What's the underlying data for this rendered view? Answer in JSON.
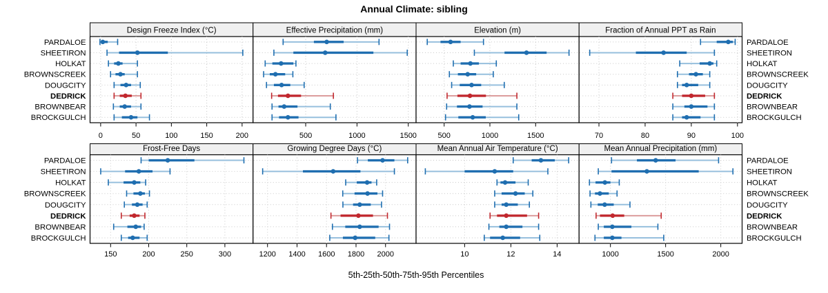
{
  "title": "Annual Climate: sibling",
  "xlabel": "5th-25th-50th-75th-95th Percentiles",
  "colors": {
    "blue": "#1f6eb0",
    "blue_light": "#96bfdd",
    "red": "#c1272d",
    "red_light": "#dc9c9c",
    "grid": "#c8c8c8",
    "strip_bg": "#f0f0f0",
    "panel_border": "#000000",
    "text": "#000000"
  },
  "sites": [
    "PARDALOE",
    "SHEETIRON",
    "HOLKAT",
    "BROWNSCREEK",
    "DOUGCITY",
    "DEDRICK",
    "BROWNBEAR",
    "BROCKGULCH"
  ],
  "highlight_site": "DEDRICK",
  "chart_data": {
    "type": "dot-interval-trellis",
    "percentiles": [
      5,
      25,
      50,
      75,
      95
    ],
    "layout": {
      "rows": 2,
      "cols": 4
    },
    "legend_note": "5th-25th-50th-75th-95th Percentiles",
    "panels": [
      {
        "title": "Design Freeze Index (°C)",
        "xlim": [
          -15,
          215.5
        ],
        "ticks": [
          0,
          50,
          100,
          150,
          200
        ],
        "series": {
          "PARDALOE": [
            -1,
            1,
            3,
            10,
            24
          ],
          "SHEETIRON": [
            9,
            26,
            52,
            95,
            201
          ],
          "HOLKAT": [
            11,
            19,
            25,
            31,
            52
          ],
          "BROWNSCREEK": [
            14,
            21,
            28,
            34,
            52
          ],
          "DOUGCITY": [
            19,
            28,
            36,
            43,
            56
          ],
          "DEDRICK": [
            19,
            27,
            35,
            44,
            57
          ],
          "BROWNBEAR": [
            18,
            27,
            34,
            43,
            57
          ],
          "BROCKGULCH": [
            19,
            30,
            43,
            52,
            69
          ]
        }
      },
      {
        "title": "Effective Precipitation (mm)",
        "xlim": [
          -13,
          1576
        ],
        "ticks": [
          500,
          1000,
          1500
        ],
        "series": {
          "PARDALOE": [
            280,
            580,
            705,
            870,
            1215
          ],
          "SHEETIRON": [
            190,
            380,
            690,
            1160,
            1490
          ],
          "HOLKAT": [
            105,
            175,
            260,
            380,
            405
          ],
          "BROWNSCREEK": [
            90,
            150,
            205,
            300,
            375
          ],
          "DOUGCITY": [
            118,
            190,
            265,
            350,
            485
          ],
          "DEDRICK": [
            168,
            230,
            327,
            455,
            770
          ],
          "BROWNBEAR": [
            172,
            235,
            290,
            420,
            740
          ],
          "BROCKGULCH": [
            172,
            240,
            327,
            430,
            795
          ]
        }
      },
      {
        "title": "Elevation (m)",
        "xlim": [
          193,
          1975
        ],
        "ticks": [
          500,
          1000,
          1500
        ],
        "series": {
          "PARDALOE": [
            315,
            460,
            570,
            680,
            930
          ],
          "SHEETIRON": [
            830,
            1160,
            1400,
            1620,
            1865
          ],
          "HOLKAT": [
            600,
            680,
            787,
            880,
            1070
          ],
          "BROWNSCREEK": [
            557,
            650,
            757,
            850,
            1037
          ],
          "DOUGCITY": [
            582,
            670,
            800,
            905,
            1157
          ],
          "DEDRICK": [
            532,
            645,
            782,
            957,
            1295
          ],
          "BROWNBEAR": [
            527,
            640,
            777,
            920,
            1295
          ],
          "BROCKGULCH": [
            515,
            655,
            812,
            955,
            1315
          ]
        }
      },
      {
        "title": "Fraction of Annual PPT as Rain",
        "xlim": [
          65.7,
          101
        ],
        "ticks": [
          70,
          80,
          90,
          100
        ],
        "series": {
          "PARDALOE": [
            92,
            95.5,
            98,
            99,
            99.5
          ],
          "SHEETIRON": [
            68,
            78,
            84,
            89,
            95
          ],
          "HOLKAT": [
            87.5,
            91.8,
            94,
            94.8,
            95.5
          ],
          "BROWNSCREEK": [
            87,
            89.5,
            91,
            92.5,
            94
          ],
          "DOUGCITY": [
            87,
            88,
            89,
            91.5,
            94
          ],
          "DEDRICK": [
            86,
            88,
            90,
            93,
            95
          ],
          "BROWNBEAR": [
            86,
            88.5,
            90,
            93.5,
            95
          ],
          "BROCKGULCH": [
            86,
            88,
            89,
            92,
            95
          ]
        }
      },
      {
        "title": "Frost-Free Days",
        "xlim": [
          123,
          337
        ],
        "ticks": [
          150,
          200,
          250,
          300
        ],
        "series": {
          "PARDALOE": [
            190,
            200,
            225,
            260,
            325
          ],
          "SHEETIRON": [
            137,
            169,
            187,
            205,
            228
          ],
          "HOLKAT": [
            147,
            167,
            181,
            189,
            196
          ],
          "BROWNSCREEK": [
            171,
            180,
            189,
            195,
            201
          ],
          "DOUGCITY": [
            168,
            178,
            185,
            192,
            198
          ],
          "DEDRICK": [
            164,
            175,
            181,
            188,
            195
          ],
          "BROWNBEAR": [
            154,
            172,
            183,
            190,
            194
          ],
          "BROCKGULCH": [
            164,
            173,
            179,
            188,
            198
          ]
        }
      },
      {
        "title": "Growing Degree Days (°C)",
        "xlim": [
          1102,
          2207
        ],
        "ticks": [
          1200,
          1400,
          1600,
          1800,
          2000
        ],
        "series": {
          "PARDALOE": [
            1810,
            1880,
            1980,
            2060,
            2150
          ],
          "SHEETIRON": [
            1167,
            1440,
            1645,
            1830,
            2060
          ],
          "HOLKAT": [
            1730,
            1805,
            1875,
            1905,
            1940
          ],
          "BROWNSCREEK": [
            1710,
            1790,
            1878,
            1945,
            1980
          ],
          "DOUGCITY": [
            1711,
            1780,
            1825,
            1900,
            1973
          ],
          "DEDRICK": [
            1630,
            1695,
            1816,
            1915,
            2013
          ],
          "BROWNBEAR": [
            1640,
            1727,
            1825,
            1953,
            2027
          ],
          "BROCKGULCH": [
            1622,
            1711,
            1794,
            1930,
            2023
          ]
        }
      },
      {
        "title": "Mean Annual Air Temperature (°C)",
        "xlim": [
          7.9,
          14.95
        ],
        "ticks": [
          10,
          12,
          14
        ],
        "series": {
          "PARDALOE": [
            12.1,
            12.9,
            13.3,
            13.9,
            14.5
          ],
          "SHEETIRON": [
            8.3,
            10.0,
            11.3,
            12.1,
            13.6
          ],
          "HOLKAT": [
            11.4,
            11.55,
            11.75,
            12.2,
            12.75
          ],
          "BROWNSCREEK": [
            11.3,
            11.6,
            12.2,
            12.6,
            12.95
          ],
          "DOUGCITY": [
            11.3,
            11.6,
            11.8,
            12.3,
            12.8
          ],
          "DEDRICK": [
            11.1,
            11.4,
            11.8,
            12.7,
            13.2
          ],
          "BROWNBEAR": [
            11.05,
            11.5,
            11.8,
            12.5,
            13.2
          ],
          "BROCKGULCH": [
            10.85,
            11.1,
            11.65,
            12.4,
            13.25
          ]
        }
      },
      {
        "title": "Mean Annual Precipitation (mm)",
        "xlim": [
          716,
          2193
        ],
        "ticks": [
          1000,
          1500,
          2000
        ],
        "series": {
          "PARDALOE": [
            1010,
            1240,
            1410,
            1590,
            1980
          ],
          "SHEETIRON": [
            890,
            1010,
            1330,
            1800,
            2110
          ],
          "HOLKAT": [
            810,
            865,
            950,
            1000,
            1080
          ],
          "BROWNSCREEK": [
            815,
            860,
            905,
            985,
            1060
          ],
          "DOUGCITY": [
            823,
            885,
            948,
            1030,
            1177
          ],
          "DEDRICK": [
            870,
            905,
            1020,
            1125,
            1460
          ],
          "BROWNBEAR": [
            890,
            940,
            1017,
            1190,
            1430
          ],
          "BROCKGULCH": [
            860,
            940,
            1017,
            1100,
            1483
          ]
        }
      }
    ]
  }
}
